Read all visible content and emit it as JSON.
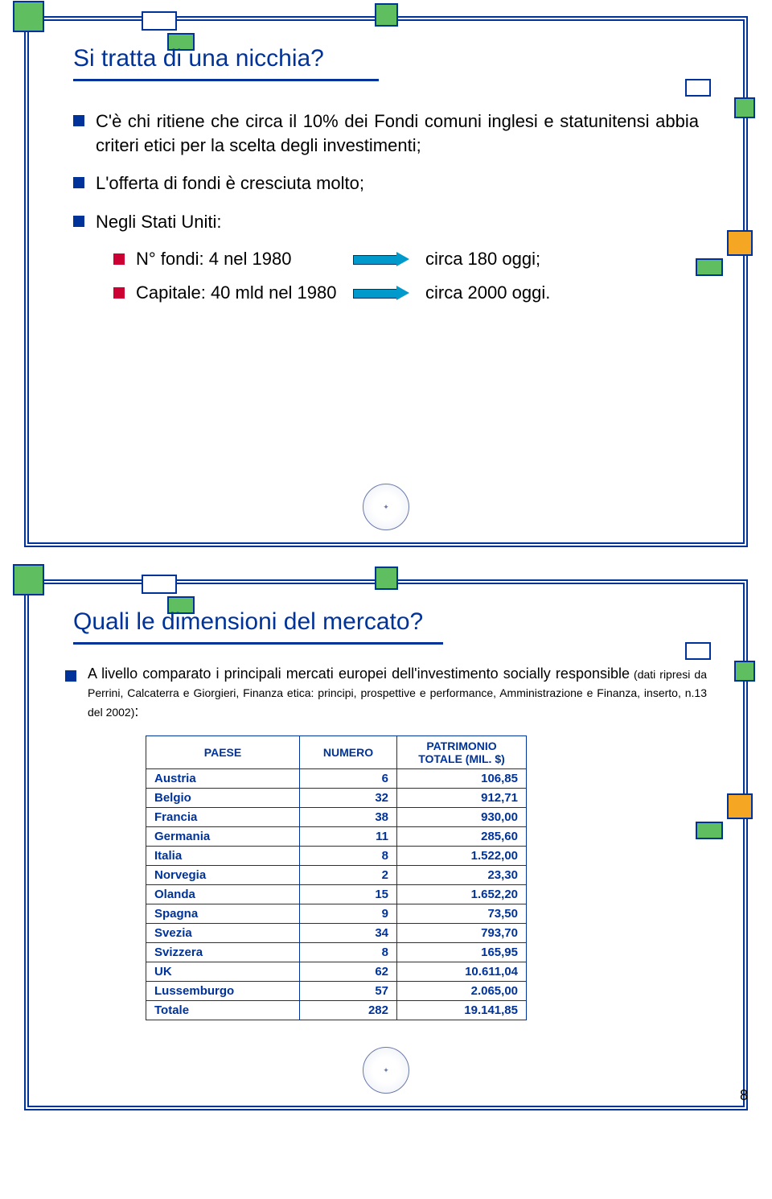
{
  "colors": {
    "navy": "#003399",
    "green": "#5fbf60",
    "orange": "#f5a623",
    "arrow": "#0099cc",
    "red": "#cc0033"
  },
  "page_number": "8",
  "slide1": {
    "title": "Si tratta di una nicchia?",
    "bullets": {
      "b1": "C'è chi ritiene che circa il 10% dei Fondi comuni inglesi e statunitensi abbia criteri etici per la scelta degli investimenti;",
      "b2": "L'offerta di fondi è cresciuta molto;",
      "b3": "Negli Stati Uniti:"
    },
    "sub": {
      "s1_label": "N° fondi: 4 nel 1980",
      "s1_result": "circa 180 oggi;",
      "s2_label": "Capitale: 40 mld nel 1980",
      "s2_result": "circa 2000 oggi."
    }
  },
  "slide2": {
    "title": "Quali le dimensioni del mercato?",
    "intro_lead": "A livello comparato i principali mercati europei dell'investimento socially responsible",
    "intro_cite": " (dati ripresi da Perrini, Calcaterra e Giorgieri, Finanza etica: principi, prospettive e performance, Amministrazione e Finanza, inserto, n.13 del 2002)",
    "intro_tail": ":",
    "table": {
      "headers": {
        "country": "PAESE",
        "num": "NUMERO",
        "val": "PATRIMONIO TOTALE (MIL. $)"
      },
      "rows": [
        {
          "country": "Austria",
          "num": "6",
          "val": "106,85"
        },
        {
          "country": "Belgio",
          "num": "32",
          "val": "912,71"
        },
        {
          "country": "Francia",
          "num": "38",
          "val": "930,00"
        },
        {
          "country": "Germania",
          "num": "11",
          "val": "285,60"
        },
        {
          "country": "Italia",
          "num": "8",
          "val": "1.522,00"
        },
        {
          "country": "Norvegia",
          "num": "2",
          "val": "23,30"
        },
        {
          "country": "Olanda",
          "num": "15",
          "val": "1.652,20"
        },
        {
          "country": "Spagna",
          "num": "9",
          "val": "73,50"
        },
        {
          "country": "Svezia",
          "num": "34",
          "val": "793,70"
        },
        {
          "country": "Svizzera",
          "num": "8",
          "val": "165,95"
        },
        {
          "country": "UK",
          "num": "62",
          "val": "10.611,04"
        },
        {
          "country": "Lussemburgo",
          "num": "57",
          "val": "2.065,00"
        }
      ],
      "total": {
        "country": "Totale",
        "num": "282",
        "val": "19.141,85"
      }
    }
  }
}
